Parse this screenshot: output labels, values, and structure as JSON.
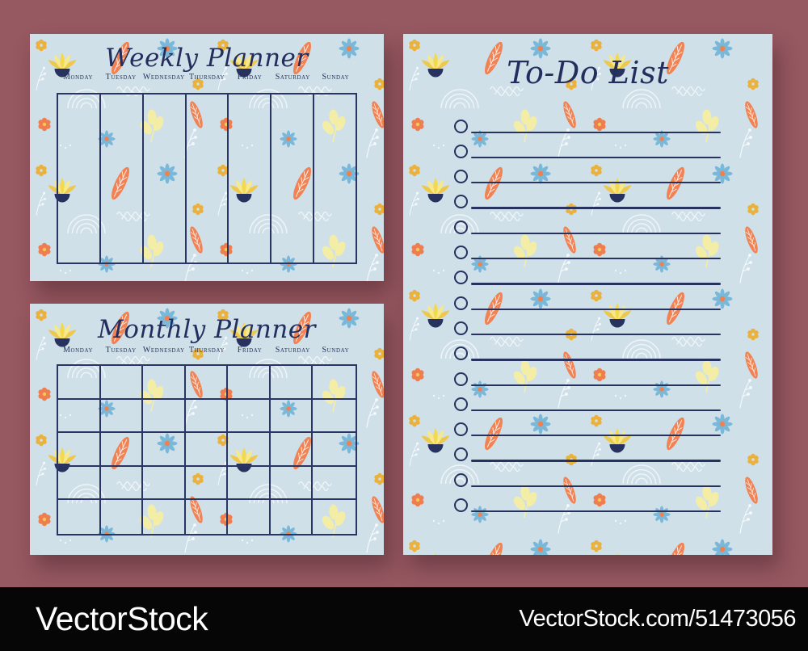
{
  "watermark_bar": {
    "brand": "VectorStock",
    "credit": "VectorStock.com/51473056"
  },
  "weekly_planner": {
    "title": "Weekly Planner",
    "days": [
      "Monday",
      "Tuesday",
      "Wednesday",
      "Thursday",
      "Friday",
      "Saturday",
      "Sunday"
    ],
    "columns": 7
  },
  "monthly_planner": {
    "title": "Monthly Planner",
    "days": [
      "Monday",
      "Tuesday",
      "Wednesday",
      "Thursday",
      "Friday",
      "Saturday",
      "Sunday"
    ],
    "columns": 7,
    "rows": 5
  },
  "todo_list": {
    "title": "To-Do List",
    "items_count": 16
  },
  "palette": {
    "backdrop_mauve": "#965861",
    "card_background": "#cfe0e9",
    "ink_navy": "#27325f",
    "leaf_orange": "#f08253",
    "flower_yellow": "#f2d94f",
    "flower_yellow_light": "#f7e88a",
    "leaf_pale_yellow": "#f4eda6",
    "flower_blue": "#79b8d9",
    "flower_mustard": "#eab23c",
    "pattern_white": "#ffffff",
    "bar_black": "#060606"
  }
}
